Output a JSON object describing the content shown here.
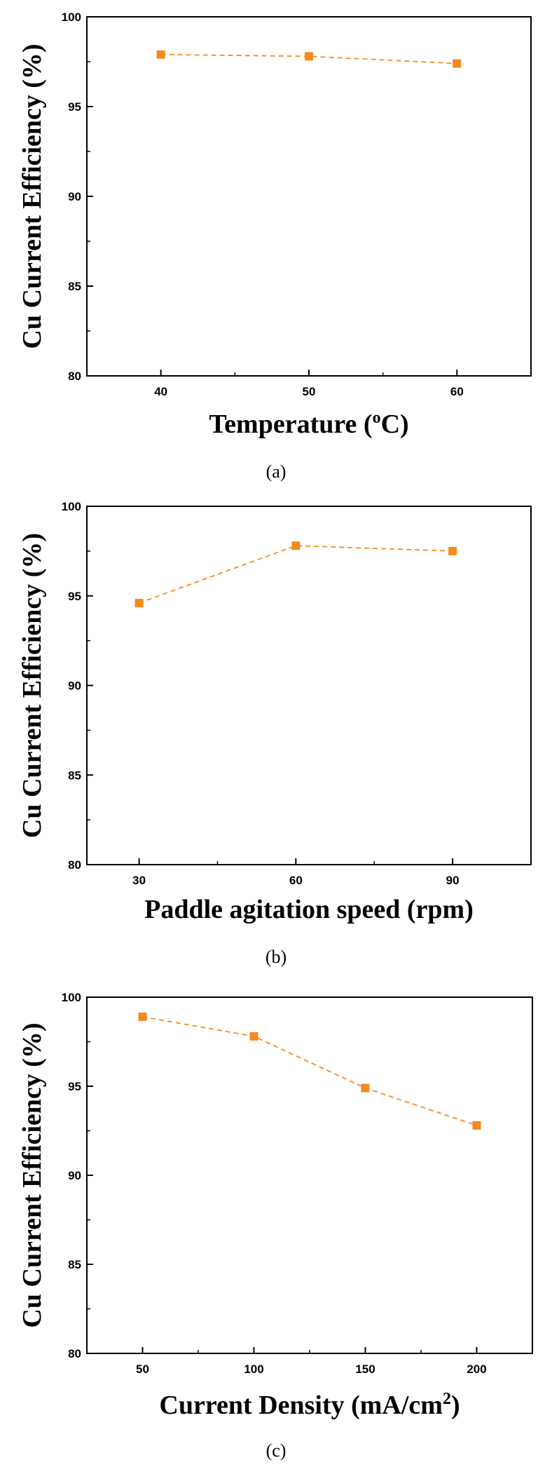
{
  "colors": {
    "series": "#F28C1E",
    "axis": "#000000"
  },
  "chart_data": [
    {
      "type": "line",
      "caption": "(a)",
      "xlabel": "Temperature (",
      "xlabel_sup": "o",
      "xlabel_after": "C)",
      "ylabel": "Cu Current Efficiency (%)",
      "xlim": [
        35,
        65
      ],
      "ylim": [
        80,
        100
      ],
      "xticks": [
        40,
        50,
        60
      ],
      "xticks_minor": [
        45,
        55
      ],
      "yticks": [
        80,
        85,
        90,
        95,
        100
      ],
      "yticks_minor": [
        82.5,
        87.5,
        92.5,
        97.5
      ],
      "x": [
        40,
        50,
        60
      ],
      "y": [
        97.9,
        97.8,
        97.4
      ],
      "marker": "square",
      "line_style": "dashed",
      "grid": false
    },
    {
      "type": "line",
      "caption": "(b)",
      "xlabel": "Paddle agitation speed (rpm)",
      "xlabel_sup": "",
      "xlabel_after": "",
      "ylabel": "Cu Current Efficiency (%)",
      "xlim": [
        20,
        105
      ],
      "ylim": [
        80,
        100
      ],
      "xticks": [
        30,
        60,
        90
      ],
      "xticks_minor": [
        45,
        75
      ],
      "yticks": [
        80,
        85,
        90,
        95,
        100
      ],
      "yticks_minor": [
        82.5,
        87.5,
        92.5,
        97.5
      ],
      "x": [
        30,
        60,
        90
      ],
      "y": [
        94.6,
        97.8,
        97.5
      ],
      "marker": "square",
      "line_style": "dashed",
      "grid": false
    },
    {
      "type": "line",
      "caption": "(c)",
      "xlabel": "Current Density (mA/cm",
      "xlabel_sup": "2",
      "xlabel_after": ")",
      "ylabel": "Cu Current Efficiency (%)",
      "xlim": [
        25,
        225
      ],
      "ylim": [
        80,
        100
      ],
      "xticks": [
        50,
        100,
        150,
        200
      ],
      "xticks_minor": [
        75,
        125,
        175
      ],
      "yticks": [
        80,
        85,
        90,
        95,
        100
      ],
      "yticks_minor": [
        82.5,
        87.5,
        92.5,
        97.5
      ],
      "x": [
        50,
        100,
        150,
        200
      ],
      "y": [
        98.9,
        97.8,
        94.9,
        92.8
      ],
      "marker": "square",
      "line_style": "dashed",
      "grid": false
    }
  ]
}
